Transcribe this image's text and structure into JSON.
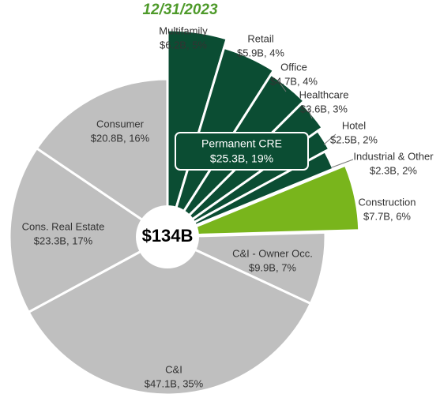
{
  "chart_data": {
    "type": "pie",
    "title": "12/31/2023",
    "total": {
      "value": 134,
      "label": "$134B"
    },
    "categories": [
      "Multifamily",
      "Retail",
      "Office",
      "Healthcare",
      "Hotel",
      "Industrial & Other",
      "Construction",
      "C&I - Owner Occ.",
      "C&I",
      "Cons. Real Estate",
      "Consumer"
    ],
    "values": [
      6.2,
      5.9,
      4.7,
      3.6,
      2.5,
      2.3,
      7.7,
      9.9,
      47.1,
      23.3,
      20.8
    ],
    "value_labels": [
      "$6.2B, 5%",
      "$5.9B, 4%",
      "$4.7B, 4%",
      "$3.6B, 3%",
      "$2.5B, 2%",
      "$2.3B, 2%",
      "$7.7B, 6%",
      "$9.9B, 7%",
      "$47.1B, 35%",
      "$23.3B, 17%",
      "$20.8B, 16%"
    ],
    "colors": [
      "#0b4d33",
      "#0b4d33",
      "#0b4d33",
      "#0b4d33",
      "#0b4d33",
      "#0b4d33",
      "#79b51c",
      "#bfbfbf",
      "#bfbfbf",
      "#bfbfbf",
      "#bfbfbf"
    ],
    "group": {
      "label": "Permanent CRE",
      "value": 25.3,
      "value_label": "$25.3B, 19%"
    }
  }
}
